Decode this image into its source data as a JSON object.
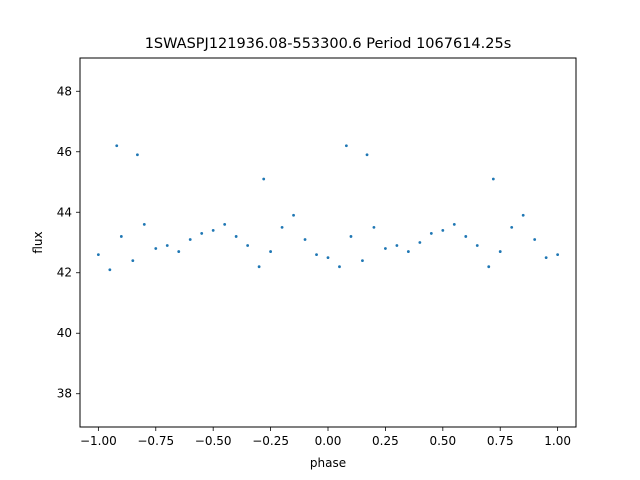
{
  "chart_data": {
    "type": "scatter",
    "title": "1SWASPJ121936.08-553300.6 Period 1067614.25s",
    "xlabel": "phase",
    "ylabel": "flux",
    "xlim": [
      -1.08,
      1.08
    ],
    "ylim": [
      36.9,
      49.1
    ],
    "xticks": [
      -1.0,
      -0.75,
      -0.5,
      -0.25,
      0.0,
      0.25,
      0.5,
      0.75,
      1.0
    ],
    "xtick_labels": [
      "−1.00",
      "−0.75",
      "−0.50",
      "−0.25",
      "0.00",
      "0.25",
      "0.50",
      "0.75",
      "1.00"
    ],
    "yticks": [
      38,
      40,
      42,
      44,
      46,
      48
    ],
    "ytick_labels": [
      "38",
      "40",
      "42",
      "44",
      "46",
      "48"
    ],
    "grid": false,
    "marker_color": "#1f77b4",
    "series": [
      {
        "points": [
          [
            -1.0,
            42.6
          ],
          [
            -0.95,
            42.1
          ],
          [
            -0.92,
            46.2
          ],
          [
            -0.9,
            43.2
          ],
          [
            -0.85,
            42.4
          ],
          [
            -0.83,
            45.9
          ],
          [
            -0.8,
            43.6
          ],
          [
            -0.75,
            42.8
          ],
          [
            -0.7,
            42.9
          ],
          [
            -0.65,
            42.7
          ],
          [
            -0.6,
            43.1
          ],
          [
            -0.55,
            43.3
          ],
          [
            -0.5,
            43.4
          ],
          [
            -0.45,
            43.6
          ],
          [
            -0.4,
            43.2
          ],
          [
            -0.35,
            42.9
          ],
          [
            -0.3,
            42.2
          ],
          [
            -0.28,
            45.1
          ],
          [
            -0.25,
            42.7
          ],
          [
            -0.2,
            43.5
          ],
          [
            -0.15,
            43.9
          ],
          [
            -0.1,
            43.1
          ],
          [
            -0.05,
            42.6
          ],
          [
            0.0,
            42.5
          ],
          [
            0.05,
            42.2
          ],
          [
            0.08,
            46.2
          ],
          [
            0.1,
            43.2
          ],
          [
            0.15,
            42.4
          ],
          [
            0.17,
            45.9
          ],
          [
            0.2,
            43.5
          ],
          [
            0.25,
            42.8
          ],
          [
            0.3,
            42.9
          ],
          [
            0.35,
            42.7
          ],
          [
            0.4,
            43.0
          ],
          [
            0.45,
            43.3
          ],
          [
            0.5,
            43.4
          ],
          [
            0.55,
            43.6
          ],
          [
            0.6,
            43.2
          ],
          [
            0.65,
            42.9
          ],
          [
            0.7,
            42.2
          ],
          [
            0.72,
            45.1
          ],
          [
            0.75,
            42.7
          ],
          [
            0.8,
            43.5
          ],
          [
            0.85,
            43.9
          ],
          [
            0.9,
            43.1
          ],
          [
            0.95,
            42.5
          ],
          [
            1.0,
            42.6
          ]
        ]
      }
    ]
  }
}
